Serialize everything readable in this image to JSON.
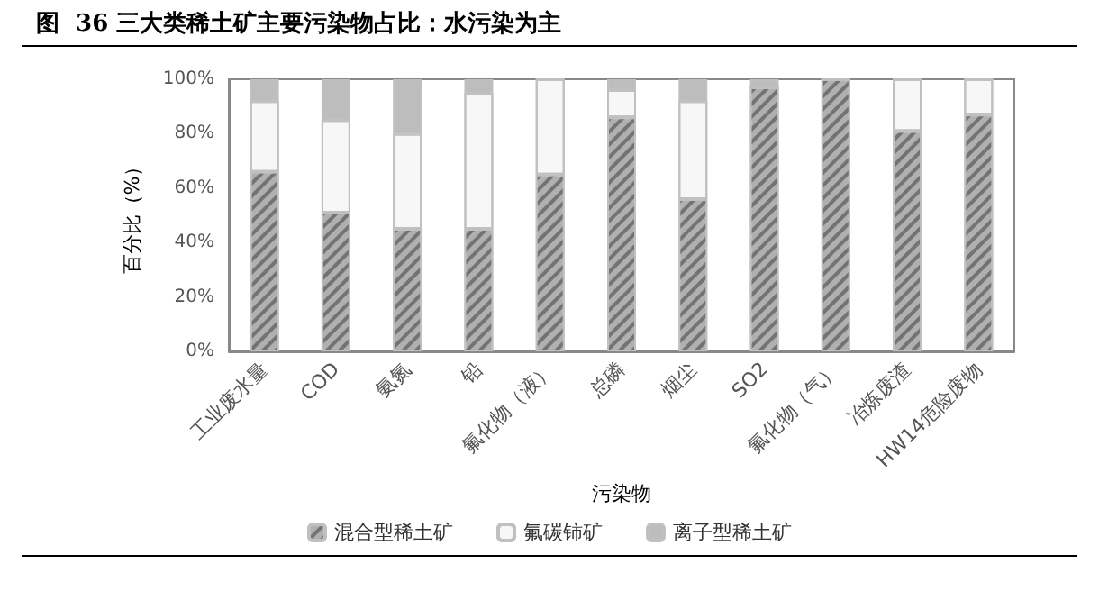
{
  "chart_data": {
    "type": "bar",
    "title": "图  36 三大类稀土矿主要污染物占比：水污染为主",
    "xlabel": "污染物",
    "ylabel": "百分比（%）",
    "categories": [
      "工业废水量",
      "COD",
      "氨氮",
      "铅",
      "氟化物（液）",
      "总磷",
      "烟尘",
      "SO2",
      "氟化物（气）",
      "冶炼废渣",
      "HW14危险废物"
    ],
    "stacked": true,
    "series": [
      {
        "name": "混合型稀土矿",
        "color": "#b0b0b0",
        "values": [
          66,
          51,
          45,
          45,
          65,
          86,
          56,
          97,
          100,
          81,
          87
        ]
      },
      {
        "name": "氟碳铈矿",
        "color": "#f7f7f7",
        "values": [
          26,
          34,
          35,
          50,
          35,
          10,
          36,
          0,
          0,
          19,
          13
        ]
      },
      {
        "name": "离子型稀土矿",
        "color": "#bdbdbd",
        "values": [
          8,
          15,
          20,
          5,
          0,
          4,
          8,
          3,
          0,
          0,
          0
        ]
      }
    ],
    "ylim": [
      0,
      100
    ],
    "yticks": [
      {
        "value": 0,
        "label": "0%"
      },
      {
        "value": 20,
        "label": "20%"
      },
      {
        "value": 40,
        "label": "40%"
      },
      {
        "value": 60,
        "label": "60%"
      },
      {
        "value": 80,
        "label": "80%"
      },
      {
        "value": 100,
        "label": "100%"
      }
    ],
    "grid": false,
    "legend": "bottom"
  }
}
